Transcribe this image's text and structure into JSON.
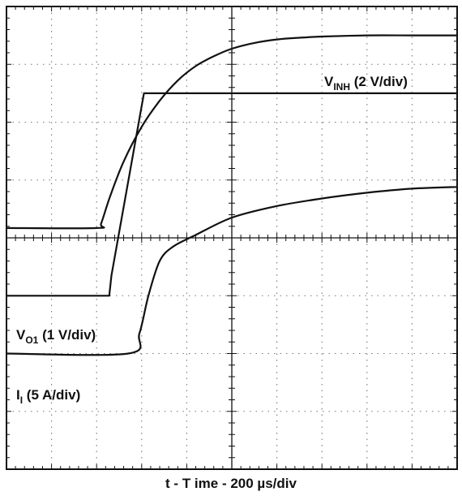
{
  "chart_data": {
    "type": "line",
    "title": "",
    "xlabel": "t - T ime - 200  µs/div",
    "ylabel": "",
    "grid": true,
    "x_divisions": 10,
    "y_divisions": 8,
    "legend_placement": "none (inline trace labels)",
    "series": [
      {
        "name": "V",
        "label_main": "V",
        "label_sub": "INH",
        "label_suffix": " (2 V/div)",
        "x_div": [
          0,
          2.0,
          2.1,
          2.3,
          2.6,
          3.0,
          3.4,
          3.8,
          4.2,
          4.6,
          5.0,
          5.5,
          6.0,
          6.5,
          7.0,
          8.0,
          9.0,
          10.0
        ],
        "y_div": [
          0,
          0,
          0.08,
          0.55,
          1.15,
          1.75,
          2.2,
          2.55,
          2.8,
          2.97,
          3.1,
          3.2,
          3.26,
          3.29,
          3.31,
          3.33,
          3.33,
          3.33
        ],
        "baseline_y_div": 0
      },
      {
        "name": "V",
        "label_main": "V",
        "label_sub": "O1",
        "label_suffix": " (1 V/div)",
        "x_div": [
          0,
          2.28,
          2.33,
          3.05,
          3.25,
          10.0
        ],
        "y_div": [
          0,
          0,
          0.35,
          3.5,
          3.5,
          3.5
        ],
        "baseline_y_div": 4.95
      },
      {
        "name": "I",
        "label_main": "I",
        "label_sub": "I",
        "label_suffix": " (5 A/div)",
        "x_div": [
          0,
          2.7,
          2.95,
          3.15,
          3.4,
          3.7,
          4.2,
          5.0,
          6.0,
          7.0,
          8.0,
          9.0,
          10.0
        ],
        "y_div": [
          0,
          0,
          0.35,
          1.0,
          1.6,
          1.85,
          2.05,
          2.35,
          2.55,
          2.68,
          2.78,
          2.85,
          2.88
        ],
        "baseline_y_div": 6.0
      }
    ]
  }
}
